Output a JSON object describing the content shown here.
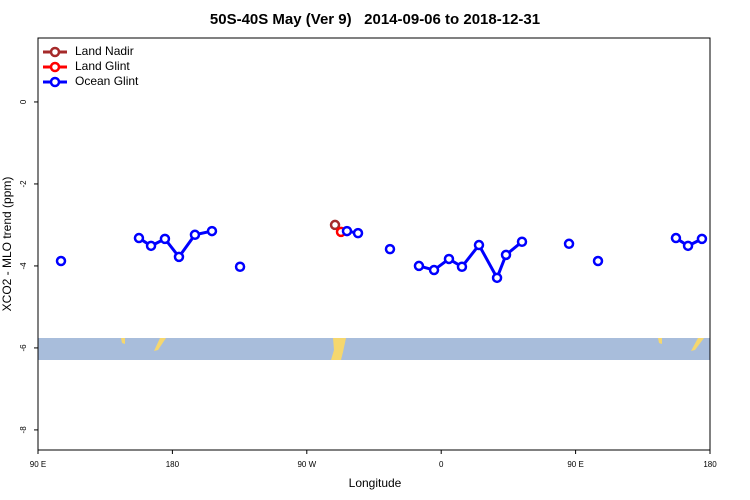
{
  "chart_data": {
    "type": "line",
    "title": "50S-40S May (Ver 9)   2014-09-06 to 2018-12-31",
    "x_label": "Longitude",
    "y_label": "XCO2 - MLO trend (ppm)",
    "xlim": [
      90,
      540
    ],
    "ylim": [
      -8.49,
      1.56
    ],
    "xticks": [
      {
        "value": 90,
        "label": "90 E"
      },
      {
        "value": 180,
        "label": "180"
      },
      {
        "value": 270,
        "label": "90 W"
      },
      {
        "value": 360,
        "label": "0"
      },
      {
        "value": 450,
        "label": "90 E"
      },
      {
        "value": 540,
        "label": "180"
      }
    ],
    "yticks": [
      0,
      -2,
      -4,
      -6,
      -8
    ],
    "legend": "top-left",
    "series": [
      {
        "name": "Land Nadir",
        "color": "#a52a2a",
        "x": [
          288.9
        ],
        "values": [
          -3.0
        ]
      },
      {
        "name": "Land Glint",
        "color": "#ff0000",
        "x": [
          292.9
        ],
        "values": [
          -3.17
        ]
      },
      {
        "name": "Ocean Glint",
        "color": "#0000ff",
        "x": [
          105.4,
          130,
          157.6,
          165.7,
          175.0,
          184.4,
          195.1,
          206.5,
          215,
          225.3,
          260,
          296.9,
          304.3,
          315,
          325.7,
          335,
          345.1,
          355.2,
          365.2,
          373.9,
          385.3,
          397.4,
          403.4,
          414.1,
          430,
          445.6,
          455,
          465.0,
          490,
          517.2,
          525.3,
          534.6
        ],
        "values": [
          -3.88,
          null,
          -3.32,
          -3.51,
          -3.34,
          -3.78,
          -3.24,
          -3.15,
          null,
          -4.02,
          null,
          -3.15,
          -3.2,
          null,
          -3.59,
          null,
          -4.0,
          -4.1,
          -3.83,
          -4.02,
          -3.49,
          -4.29,
          -3.73,
          -3.41,
          null,
          -3.46,
          null,
          -3.88,
          null,
          -3.32,
          -3.51,
          -3.34
        ]
      }
    ]
  }
}
